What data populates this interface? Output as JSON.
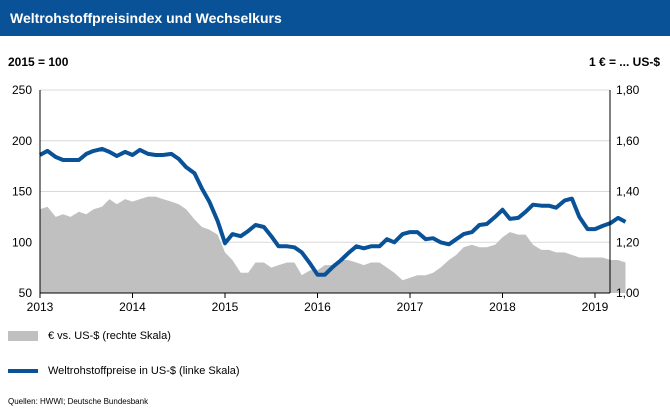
{
  "title": "Weltrohstoffpreisindex  und Wechselkurs",
  "left_unit": "2015 = 100",
  "right_unit": "1 € = ... US-$",
  "source": "Quellen: HWWI; Deutsche Bundesbank",
  "colors": {
    "title_bg": "#0a5297",
    "line": "#0a5297",
    "area": "#c0c0c0",
    "grid": "#d9d9d9"
  },
  "chart_data": {
    "type": "line",
    "title": "Weltrohstoffpreisindex  und Wechselkurs",
    "x_ticks": [
      "2013",
      "2014",
      "2015",
      "2016",
      "2017",
      "2018",
      "2019"
    ],
    "y_left": {
      "label": "2015 = 100",
      "lim": [
        50,
        250
      ],
      "ticks": [
        50,
        100,
        150,
        200,
        250
      ]
    },
    "y_right": {
      "label": "1 € = ... US-$",
      "lim": [
        1.0,
        1.8
      ],
      "ticks": [
        "1,00",
        "1,20",
        "1,40",
        "1,60",
        "1,80"
      ]
    },
    "grid": "horizontal",
    "legend": "bottom-left",
    "series": [
      {
        "name": "€ vs. US-$ (rechte Skala)",
        "type": "area",
        "axis": "right",
        "x": [
          2013.0,
          2013.08,
          2013.17,
          2013.25,
          2013.33,
          2013.42,
          2013.5,
          2013.58,
          2013.67,
          2013.75,
          2013.83,
          2013.92,
          2014.0,
          2014.08,
          2014.17,
          2014.25,
          2014.33,
          2014.42,
          2014.5,
          2014.58,
          2014.67,
          2014.75,
          2014.83,
          2014.92,
          2015.0,
          2015.08,
          2015.17,
          2015.25,
          2015.33,
          2015.42,
          2015.5,
          2015.58,
          2015.67,
          2015.75,
          2015.83,
          2015.92,
          2016.0,
          2016.08,
          2016.17,
          2016.25,
          2016.33,
          2016.42,
          2016.5,
          2016.58,
          2016.67,
          2016.75,
          2016.83,
          2016.92,
          2017.0,
          2017.08,
          2017.17,
          2017.25,
          2017.33,
          2017.42,
          2017.5,
          2017.58,
          2017.67,
          2017.75,
          2017.83,
          2017.92,
          2018.0,
          2018.08,
          2018.17,
          2018.25,
          2018.33,
          2018.42,
          2018.5,
          2018.58,
          2018.67,
          2018.75,
          2018.83,
          2018.92,
          2019.0,
          2019.08,
          2019.17,
          2019.25,
          2019.33
        ],
        "y": [
          1.33,
          1.34,
          1.3,
          1.31,
          1.3,
          1.32,
          1.31,
          1.33,
          1.34,
          1.37,
          1.35,
          1.37,
          1.36,
          1.37,
          1.38,
          1.38,
          1.37,
          1.36,
          1.35,
          1.33,
          1.29,
          1.26,
          1.25,
          1.23,
          1.16,
          1.13,
          1.08,
          1.08,
          1.12,
          1.12,
          1.1,
          1.11,
          1.12,
          1.12,
          1.07,
          1.09,
          1.09,
          1.11,
          1.11,
          1.13,
          1.13,
          1.12,
          1.11,
          1.12,
          1.12,
          1.1,
          1.08,
          1.05,
          1.06,
          1.07,
          1.07,
          1.08,
          1.1,
          1.13,
          1.15,
          1.18,
          1.19,
          1.18,
          1.18,
          1.19,
          1.22,
          1.24,
          1.23,
          1.23,
          1.19,
          1.17,
          1.17,
          1.16,
          1.16,
          1.15,
          1.14,
          1.14,
          1.14,
          1.14,
          1.13,
          1.13,
          1.12
        ]
      },
      {
        "name": "Weltrohstoffpreise in US-$ (linke Skala)",
        "type": "line",
        "axis": "left",
        "x": [
          2013.0,
          2013.08,
          2013.17,
          2013.25,
          2013.33,
          2013.42,
          2013.5,
          2013.58,
          2013.67,
          2013.75,
          2013.83,
          2013.92,
          2014.0,
          2014.08,
          2014.17,
          2014.25,
          2014.33,
          2014.42,
          2014.5,
          2014.58,
          2014.67,
          2014.75,
          2014.83,
          2014.92,
          2015.0,
          2015.08,
          2015.17,
          2015.25,
          2015.33,
          2015.42,
          2015.5,
          2015.58,
          2015.67,
          2015.75,
          2015.83,
          2015.92,
          2016.0,
          2016.08,
          2016.17,
          2016.25,
          2016.33,
          2016.42,
          2016.5,
          2016.58,
          2016.67,
          2016.75,
          2016.83,
          2016.92,
          2017.0,
          2017.08,
          2017.17,
          2017.25,
          2017.33,
          2017.42,
          2017.5,
          2017.58,
          2017.67,
          2017.75,
          2017.83,
          2017.92,
          2018.0,
          2018.08,
          2018.17,
          2018.25,
          2018.33,
          2018.42,
          2018.5,
          2018.58,
          2018.67,
          2018.75,
          2018.83,
          2018.92,
          2019.0,
          2019.08,
          2019.17,
          2019.25,
          2019.33
        ],
        "y": [
          186,
          190,
          184,
          181,
          181,
          181,
          187,
          190,
          192,
          189,
          185,
          189,
          186,
          191,
          187,
          186,
          186,
          187,
          182,
          174,
          168,
          153,
          140,
          121,
          99,
          108,
          106,
          111,
          117,
          115,
          106,
          96,
          96,
          95,
          90,
          79,
          68,
          68,
          76,
          82,
          89,
          96,
          94,
          96,
          96,
          103,
          100,
          108,
          110,
          110,
          103,
          104,
          100,
          98,
          103,
          108,
          110,
          117,
          118,
          125,
          132,
          123,
          124,
          130,
          137,
          136,
          136,
          134,
          141,
          143,
          125,
          113,
          113,
          116,
          119,
          124,
          120
        ]
      }
    ]
  }
}
